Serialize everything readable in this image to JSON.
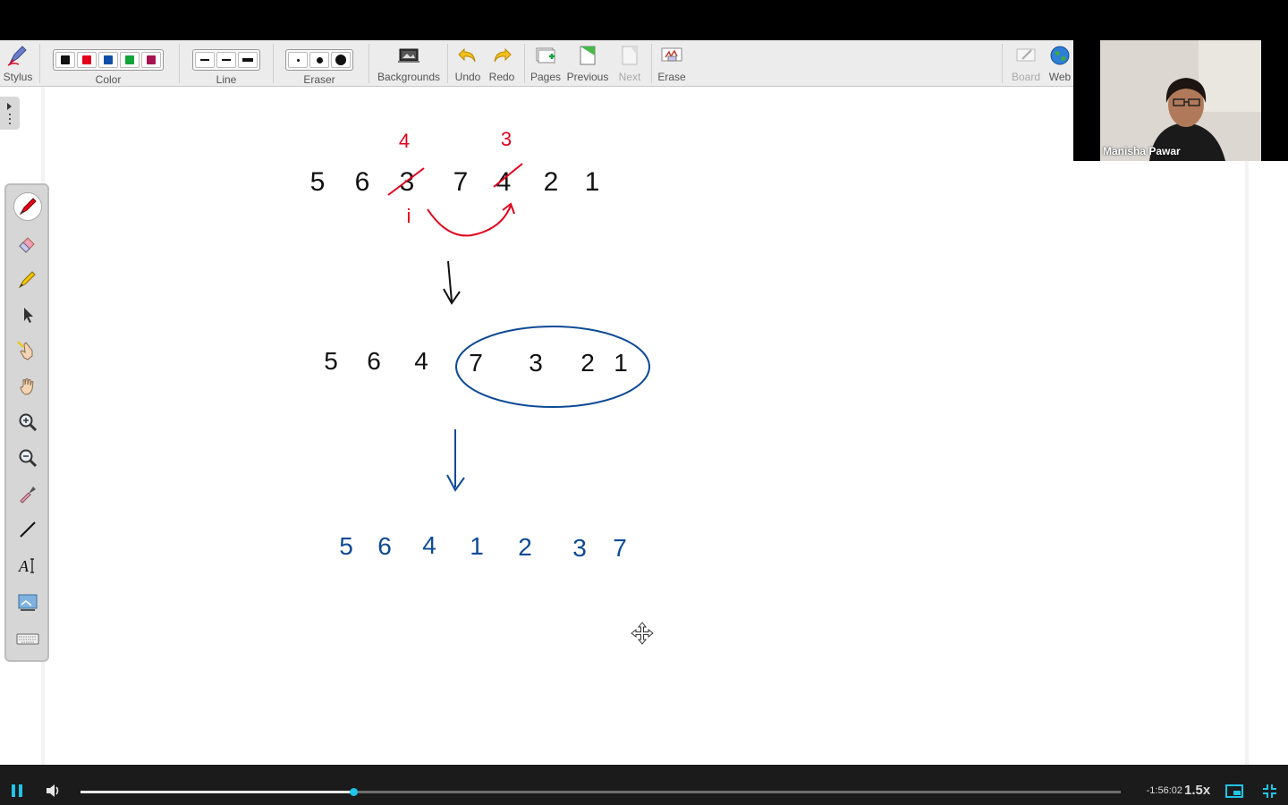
{
  "toolbar": {
    "stylus_label": "Stylus",
    "color_label": "Color",
    "line_label": "Line",
    "eraser_label": "Eraser",
    "backgrounds_label": "Backgrounds",
    "undo_label": "Undo",
    "redo_label": "Redo",
    "pages_label": "Pages",
    "previous_label": "Previous",
    "next_label": "Next",
    "erase_label": "Erase",
    "board_label": "Board",
    "web_label": "Web",
    "colors": [
      "#111111",
      "#e3001b",
      "#0d4ea8",
      "#12a33a",
      "#a4124f"
    ]
  },
  "sidebar": {
    "tools": [
      "pen-icon",
      "eraser-icon",
      "highlighter-icon",
      "select-arrow-icon",
      "pointer-hand-icon",
      "pan-hand-icon",
      "zoom-in-icon",
      "zoom-out-icon",
      "eyedropper-icon",
      "line-tool-icon",
      "text-tool-icon",
      "screen-capture-icon",
      "keyboard-icon"
    ],
    "active": "pen-icon"
  },
  "whiteboard": {
    "row1": [
      "5",
      "6",
      "3",
      "7",
      "4",
      "2",
      "1"
    ],
    "row1_annotations": {
      "above_3": "4",
      "above_4": "3",
      "marker": "i"
    },
    "row2": [
      "5",
      "6",
      "4",
      "7",
      "3",
      "2",
      "1"
    ],
    "row3": [
      "5",
      "6",
      "4",
      "1",
      "2",
      "3",
      "7"
    ],
    "ink_black": "#111111",
    "ink_red": "#e3001b",
    "ink_blue": "#0d4a96"
  },
  "webcam": {
    "name": "Manisha Pawar"
  },
  "player": {
    "time_remaining": "-1:56:02",
    "speed": "1.5x",
    "progress": 0.262,
    "accent": "#21c3e6"
  }
}
